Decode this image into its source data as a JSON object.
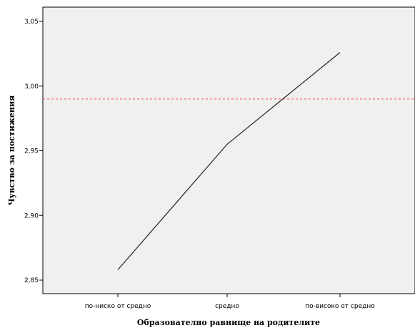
{
  "chart_data": {
    "type": "line",
    "title": "",
    "xlabel": "Образователно равнище на родителите",
    "ylabel": "Чувство за постижения",
    "categories": [
      "по-ниско от средно",
      "средно",
      "по-високо от средно"
    ],
    "series": [
      {
        "values": [
          2.858,
          2.955,
          3.026
        ]
      }
    ],
    "reference_line": {
      "y": 2.99,
      "style": "dashed",
      "color": "#ff6b6b"
    },
    "ylim": [
      2.84,
      3.06
    ],
    "yticks": [
      "2,85",
      "2,90",
      "2,95",
      "3,00",
      "3,05"
    ],
    "ytick_values": [
      2.85,
      2.9,
      2.95,
      3.0,
      3.05
    ],
    "grid": false,
    "plot_background": "#f0f0f0",
    "line_color": "#222222"
  }
}
